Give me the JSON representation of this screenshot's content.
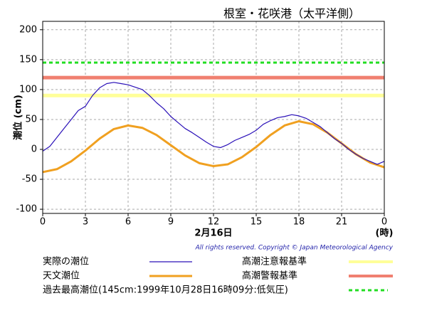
{
  "chart_data": {
    "type": "line",
    "title": "根室・花咲港（太平洋側）",
    "ylabel": "潮位 (cm)",
    "xlabel": "2月16日",
    "xunit": "(時)",
    "copyright": "All rights reserved. Copyright © Japan Meteorological Agency",
    "xlim": [
      0,
      24
    ],
    "xticks": [
      0,
      3,
      6,
      9,
      12,
      15,
      18,
      21,
      {
        "value": 24,
        "label": "0"
      }
    ],
    "ylim": [
      -107,
      214
    ],
    "yticks": [
      -100,
      -50,
      0,
      50,
      100,
      150,
      200
    ],
    "grid": true,
    "series": [
      {
        "name": "実際の潮位",
        "color": "#2a10b8",
        "width": 1.2,
        "x": [
          0,
          0.5,
          1,
          1.5,
          2,
          2.5,
          3,
          3.5,
          4,
          4.5,
          5,
          5.5,
          6,
          6.5,
          7,
          7.5,
          8,
          8.5,
          9,
          9.5,
          10,
          10.5,
          11,
          11.5,
          12,
          12.5,
          13,
          13.5,
          14,
          14.5,
          15,
          15.5,
          16,
          16.5,
          17,
          17.5,
          18,
          18.5,
          19,
          19.5,
          20,
          20.5,
          21,
          21.5,
          22,
          22.5,
          23,
          23.5,
          24
        ],
        "values": [
          -3,
          5,
          20,
          35,
          50,
          65,
          72,
          90,
          103,
          110,
          112,
          110,
          108,
          104,
          100,
          90,
          78,
          68,
          55,
          45,
          35,
          28,
          20,
          12,
          5,
          3,
          8,
          15,
          20,
          25,
          32,
          42,
          48,
          53,
          55,
          58,
          56,
          52,
          45,
          38,
          28,
          18,
          10,
          0,
          -8,
          -15,
          -20,
          -25,
          -20
        ]
      },
      {
        "name": "天文潮位",
        "color": "#f0a020",
        "width": 3,
        "x": [
          0,
          1,
          2,
          3,
          4,
          5,
          6,
          7,
          8,
          9,
          10,
          11,
          12,
          13,
          14,
          15,
          16,
          17,
          18,
          19,
          20,
          21,
          22,
          23,
          24
        ],
        "values": [
          -38,
          -33,
          -20,
          -2,
          18,
          34,
          40,
          36,
          24,
          7,
          -10,
          -23,
          -28,
          -25,
          -13,
          4,
          24,
          40,
          47,
          42,
          28,
          10,
          -8,
          -22,
          -30
        ]
      }
    ],
    "reference_lines": [
      {
        "name": "高潮注意報基準",
        "value": 90,
        "color": "#ffff99",
        "dashed": false
      },
      {
        "name": "高潮警報基準",
        "value": 120,
        "color": "#f08070",
        "dashed": false
      },
      {
        "name": "過去最高潮位(145cm:1999年10月28日16時09分:低気圧)",
        "value": 145,
        "color": "#22dd22",
        "dashed": true
      }
    ]
  }
}
